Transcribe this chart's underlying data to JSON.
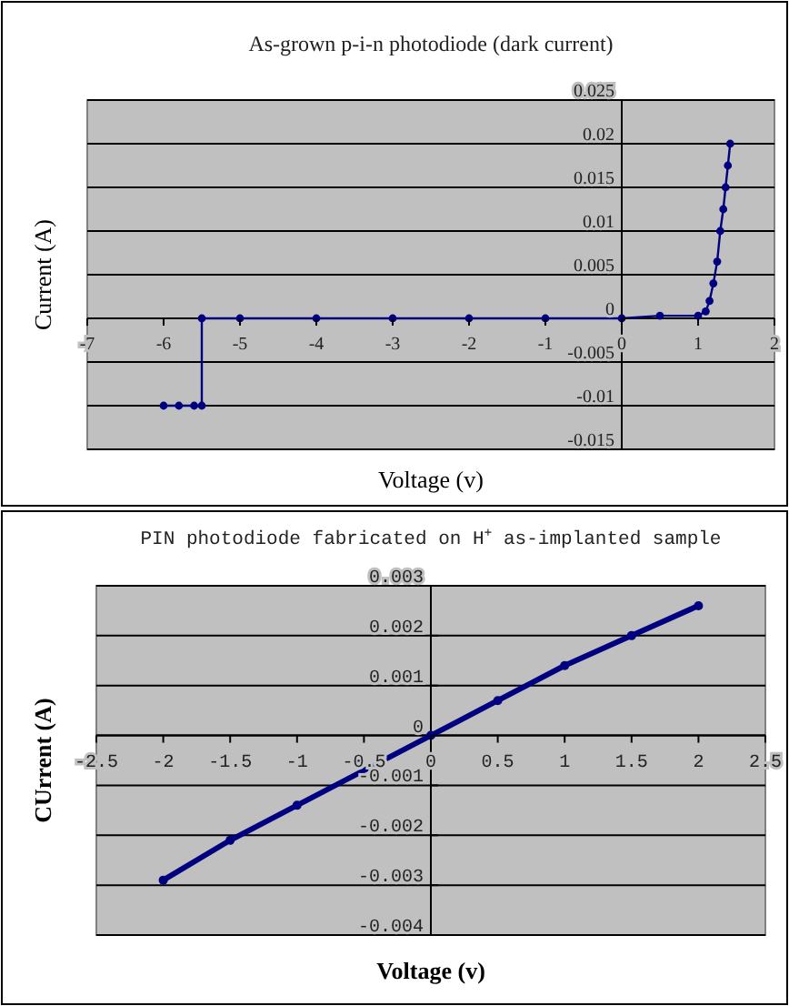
{
  "chart_data": [
    {
      "type": "line",
      "title": "As-grown p-i-n photodiode (dark current)",
      "xlabel": "Voltage (v)",
      "ylabel": "Current (A)",
      "xlim": [
        -7,
        2
      ],
      "xticks": [
        -7,
        -6,
        -5,
        -4,
        -3,
        -2,
        -1,
        0,
        1,
        2
      ],
      "ylim": [
        -0.015,
        0.025
      ],
      "yticks": [
        -0.015,
        -0.01,
        -0.005,
        0,
        0.005,
        0.01,
        0.015,
        0.02,
        0.025
      ],
      "grid": "y",
      "marker": "circle",
      "series": [
        {
          "color": "#000080",
          "x": [
            -6,
            -5.8,
            -5.6,
            -5.5,
            -5.5,
            -5,
            -4,
            -3,
            -2,
            -1,
            0,
            0.5,
            1,
            1.1,
            1.15,
            1.2,
            1.25,
            1.29,
            1.33,
            1.36,
            1.39,
            1.42
          ],
          "values": [
            -0.01,
            -0.01,
            -0.01,
            -0.01,
            0,
            0,
            0,
            0,
            0,
            0,
            0,
            0.0003,
            0.0003,
            0.0008,
            0.002,
            0.004,
            0.0065,
            0.01,
            0.0125,
            0.015,
            0.0175,
            0.02
          ]
        }
      ]
    },
    {
      "type": "line",
      "title": "PIN photodiode fabricated on H$^{+}$ as-implanted sample",
      "xlabel": "Voltage (v)",
      "ylabel": "CUrrent (A)",
      "xlim": [
        -2.5,
        2.5
      ],
      "xticks": [
        -2.5,
        -2,
        -1.5,
        -1,
        -0.5,
        0,
        0.5,
        1,
        1.5,
        2,
        2.5
      ],
      "ylim": [
        -0.004,
        0.003
      ],
      "yticks": [
        -0.004,
        -0.003,
        -0.002,
        -0.001,
        0,
        0.001,
        0.002,
        0.003
      ],
      "grid": "y",
      "marker": "circle",
      "series": [
        {
          "color": "#000080",
          "x": [
            -2,
            -1.5,
            -1,
            0,
            0.5,
            1,
            1.5,
            2
          ],
          "values": [
            -0.0029,
            -0.0021,
            -0.0014,
            0,
            0.0007,
            0.0014,
            0.002,
            0.0026
          ]
        }
      ]
    }
  ]
}
